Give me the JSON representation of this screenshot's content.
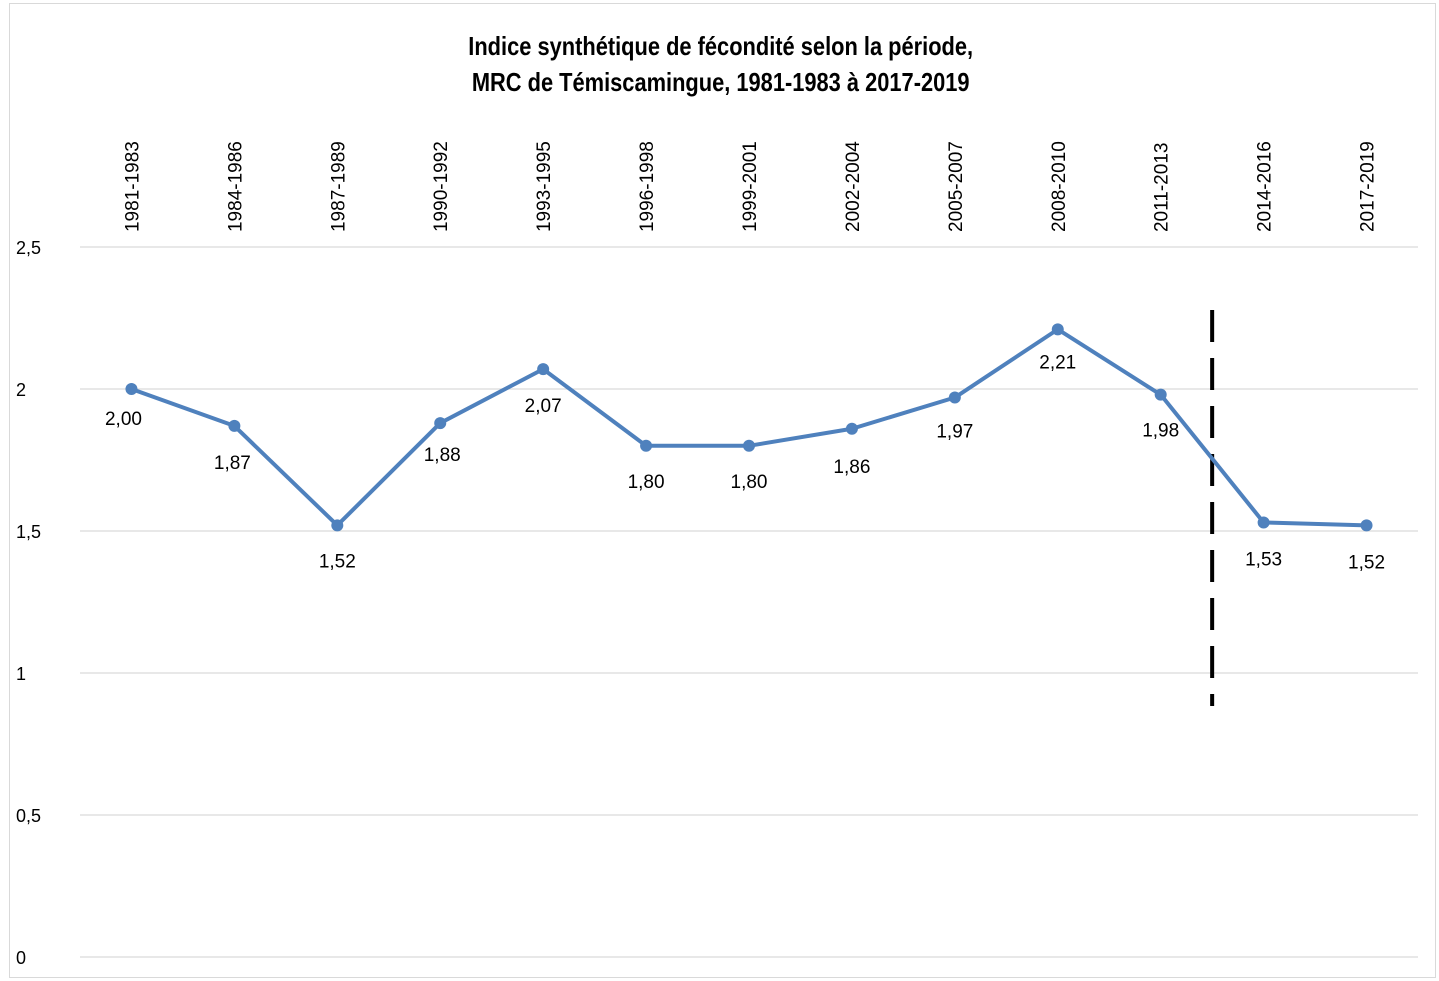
{
  "chart_data": {
    "type": "line",
    "title_lines": [
      "Indice synthétique de fécondité selon la période,",
      "MRC de Témiscamingue, 1981-1983  à 2017-2019"
    ],
    "categories": [
      "1981-1983",
      "1984-1986",
      "1987-1989",
      "1990-1992",
      "1993-1995",
      "1996-1998",
      "1999-2001",
      "2002-2004",
      "2005-2007",
      "2008-2010",
      "2011-2013",
      "2014-2016",
      "2017-2019"
    ],
    "values": [
      2.0,
      1.87,
      1.52,
      1.88,
      2.07,
      1.8,
      1.8,
      1.86,
      1.97,
      2.21,
      1.98,
      1.53,
      1.52
    ],
    "data_labels": [
      "2,00",
      "1,87",
      "1,52",
      "1,88",
      "2,07",
      "1,80",
      "1,80",
      "1,86",
      "1,97",
      "2,21",
      "1,98",
      "1,53",
      "1,52"
    ],
    "ylim": [
      0,
      2.5
    ],
    "yticks": [
      0,
      0.5,
      1,
      1.5,
      2,
      2.5
    ],
    "ytick_labels": [
      "0",
      "0,5",
      "1",
      "1,5",
      "2",
      "2,5"
    ],
    "xlabel": "",
    "ylabel": "",
    "x_tick_position": "top",
    "grid": true,
    "legend": "none",
    "annotation": "vertical dashed line between 2011-2013 and 2014-2016",
    "line_color": "#4f81bd",
    "grid_color": "#d9d9d9",
    "annotation_color": "#000000"
  }
}
